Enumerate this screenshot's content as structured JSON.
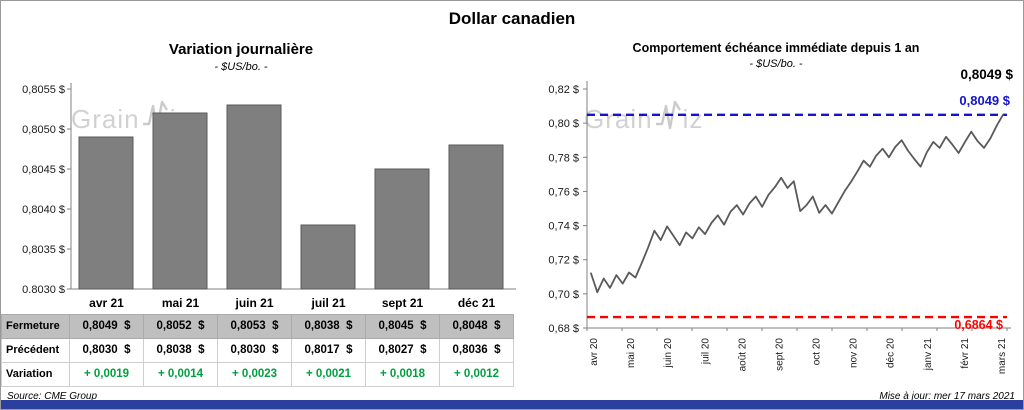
{
  "title": "Dollar canadien",
  "bar_chart": {
    "title": "Variation  journalière",
    "subtitle": "- $US/bo. -"
  },
  "line_chart": {
    "title": "Comportement échéance immédiate depuis 1 an",
    "subtitle": "- $US/bo. -",
    "callout_last": "0,8049 $",
    "callout_high": "0,8049 $",
    "callout_low": "0,6864 $"
  },
  "watermark": {
    "text_left": "Grain",
    "text_right": "iz",
    "brand": "GrainWiz"
  },
  "table": {
    "header": [
      "avr 21",
      "mai 21",
      "juin 21",
      "juil 21",
      "sept 21",
      "déc 21"
    ],
    "rows": [
      {
        "label": "Fermeture",
        "style": "gray",
        "values": [
          "0,8049  $",
          "0,8052  $",
          "0,8053  $",
          "0,8038  $",
          "0,8045  $",
          "0,8048  $"
        ]
      },
      {
        "label": "Précédent",
        "style": "white",
        "values": [
          "0,8030  $",
          "0,8038  $",
          "0,8030  $",
          "0,8017  $",
          "0,8027  $",
          "0,8036  $"
        ]
      },
      {
        "label": "Variation",
        "style": "variation",
        "values": [
          "+ 0,0019",
          "+ 0,0014",
          "+ 0,0023",
          "+ 0,0021",
          "+ 0,0018",
          "+ 0,0012"
        ]
      }
    ]
  },
  "footer": {
    "source": "Source: CME Group",
    "updated": "Mise à jour: mer 17 mars 2021"
  },
  "colors": {
    "bar_fill": "#7F7F7F",
    "bar_border": "#595959",
    "line": "#595959",
    "ref_high": "#1414CC",
    "ref_low": "#FF0000",
    "variation_green": "#00A040",
    "table_gray": "#BFBFBF",
    "bottom_bar": "#2B3F9E"
  },
  "chart_data": [
    {
      "type": "bar",
      "title": "Variation journalière",
      "subtitle": "- $US/bo. -",
      "categories": [
        "avr 21",
        "mai 21",
        "juin 21",
        "juil 21",
        "sept 21",
        "déc 21"
      ],
      "values": [
        0.8049,
        0.8052,
        0.8053,
        0.8038,
        0.8045,
        0.8048
      ],
      "ylim": [
        0.803,
        0.8055
      ],
      "yticks": [
        {
          "value": 0.8055,
          "label": "0,8055 $"
        },
        {
          "value": 0.805,
          "label": "0,8050 $"
        },
        {
          "value": 0.8045,
          "label": "0,8045 $"
        },
        {
          "value": 0.804,
          "label": "0,8040 $"
        },
        {
          "value": 0.8035,
          "label": "0,8035 $"
        },
        {
          "value": 0.803,
          "label": "0,8030 $"
        }
      ],
      "grid": false,
      "legend": "none"
    },
    {
      "type": "line",
      "title": "Comportement échéance immédiate depuis 1 an",
      "subtitle": "- $US/bo. -",
      "x_tick_labels": [
        "avr 20",
        "mai 20",
        "juin 20",
        "juil 20",
        "août 20",
        "sept 20",
        "oct 20",
        "nov 20",
        "déc 20",
        "janv 21",
        "févr 21",
        "mars 21"
      ],
      "ylim": [
        0.68,
        0.82
      ],
      "yticks": [
        {
          "value": 0.82,
          "label": "0,82 $"
        },
        {
          "value": 0.8,
          "label": "0,80 $"
        },
        {
          "value": 0.78,
          "label": "0,78 $"
        },
        {
          "value": 0.76,
          "label": "0,76 $"
        },
        {
          "value": 0.74,
          "label": "0,74 $"
        },
        {
          "value": 0.72,
          "label": "0,72 $"
        },
        {
          "value": 0.7,
          "label": "0,70 $"
        },
        {
          "value": 0.68,
          "label": "0,68 $"
        }
      ],
      "values": [
        0.712,
        0.701,
        0.709,
        0.7035,
        0.711,
        0.706,
        0.7125,
        0.7095,
        0.718,
        0.727,
        0.737,
        0.7315,
        0.7395,
        0.734,
        0.7285,
        0.736,
        0.7325,
        0.739,
        0.735,
        0.7415,
        0.746,
        0.7405,
        0.748,
        0.752,
        0.7465,
        0.753,
        0.757,
        0.751,
        0.758,
        0.7625,
        0.768,
        0.762,
        0.766,
        0.7485,
        0.752,
        0.757,
        0.7475,
        0.752,
        0.747,
        0.7535,
        0.76,
        0.7655,
        0.7715,
        0.778,
        0.7745,
        0.781,
        0.785,
        0.78,
        0.786,
        0.79,
        0.784,
        0.779,
        0.7745,
        0.783,
        0.789,
        0.7855,
        0.792,
        0.7875,
        0.7825,
        0.789,
        0.795,
        0.7895,
        0.7855,
        0.791,
        0.7985,
        0.8049
      ],
      "last_value": 0.8049,
      "last_value_label": "0,8049 $",
      "reference_lines": [
        {
          "value": 0.8049,
          "label": "0,8049 $",
          "color": "#1414CC",
          "style": "dashed"
        },
        {
          "value": 0.6864,
          "label": "0,6864 $",
          "color": "#FF0000",
          "style": "dashed"
        }
      ],
      "grid": false,
      "legend": "none"
    }
  ]
}
